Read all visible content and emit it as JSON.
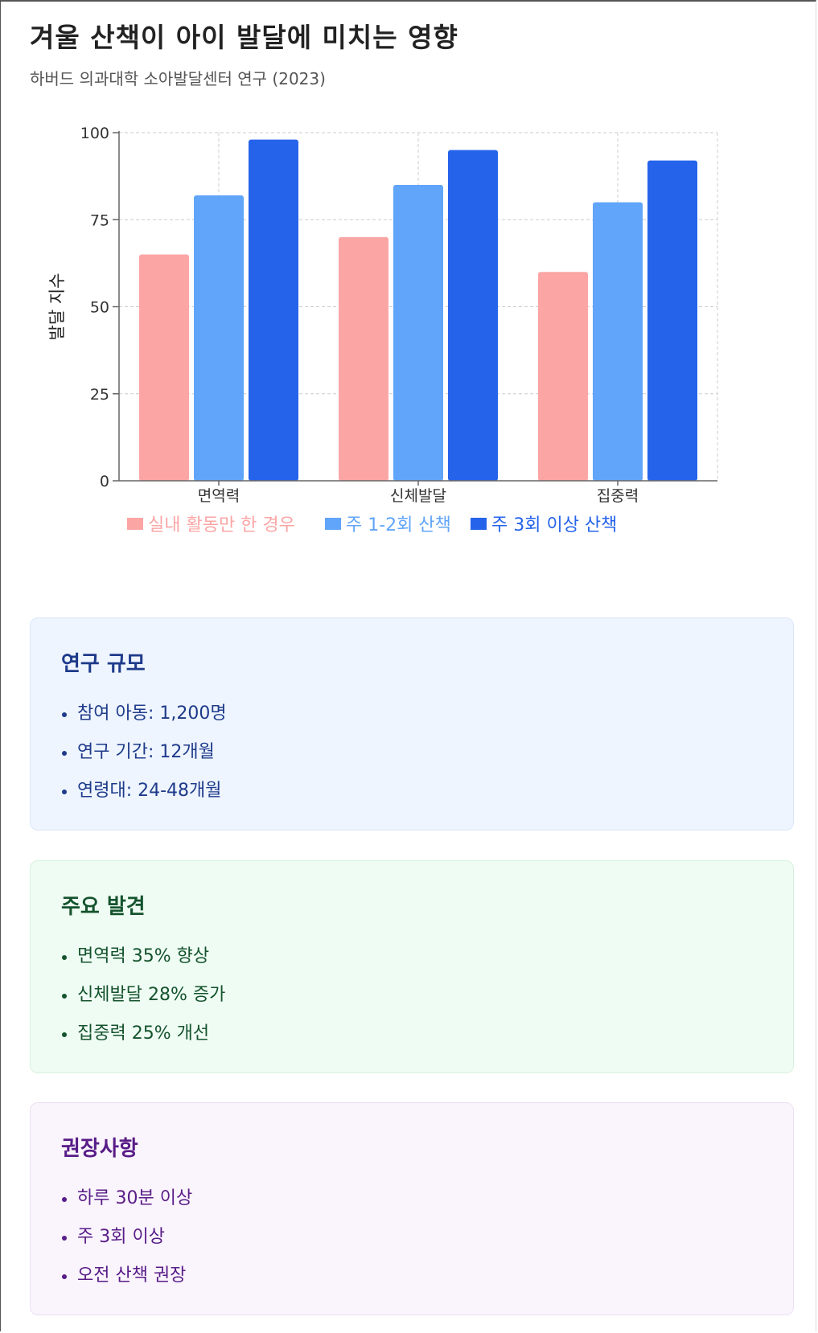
{
  "header": {
    "title": "겨울 산책이 아이 발달에 미치는 영향",
    "subtitle": "하버드 의과대학 소아발달센터 연구 (2023)"
  },
  "chart_data": {
    "type": "bar",
    "categories": [
      "면역력",
      "신체발달",
      "집중력"
    ],
    "series": [
      {
        "name": "실내 활동만 한 경우",
        "color": "#fca5a5",
        "values": [
          65,
          70,
          60
        ]
      },
      {
        "name": "주 1-2회 산책",
        "color": "#60a5fa",
        "values": [
          82,
          85,
          80
        ]
      },
      {
        "name": "주 3회 이상 산책",
        "color": "#2563eb",
        "values": [
          98,
          95,
          92
        ]
      }
    ],
    "ylabel": "발달 지수",
    "ylim": [
      0,
      100
    ],
    "yticks": [
      "0",
      "25",
      "50",
      "75",
      "100"
    ],
    "grid": true,
    "legend_position": "bottom"
  },
  "cards": {
    "scale": {
      "title": "연구 규모",
      "items": [
        "참여 아동: 1,200명",
        "연구 기간: 12개월",
        "연령대: 24-48개월"
      ]
    },
    "findings": {
      "title": "주요 발견",
      "items": [
        "면역력 35% 향상",
        "신체발달 28% 증가",
        "집중력 25% 개선"
      ]
    },
    "recommendations": {
      "title": "권장사항",
      "items": [
        "하루 30분 이상",
        "주 3회 이상",
        "오전 산책 권장"
      ]
    }
  }
}
